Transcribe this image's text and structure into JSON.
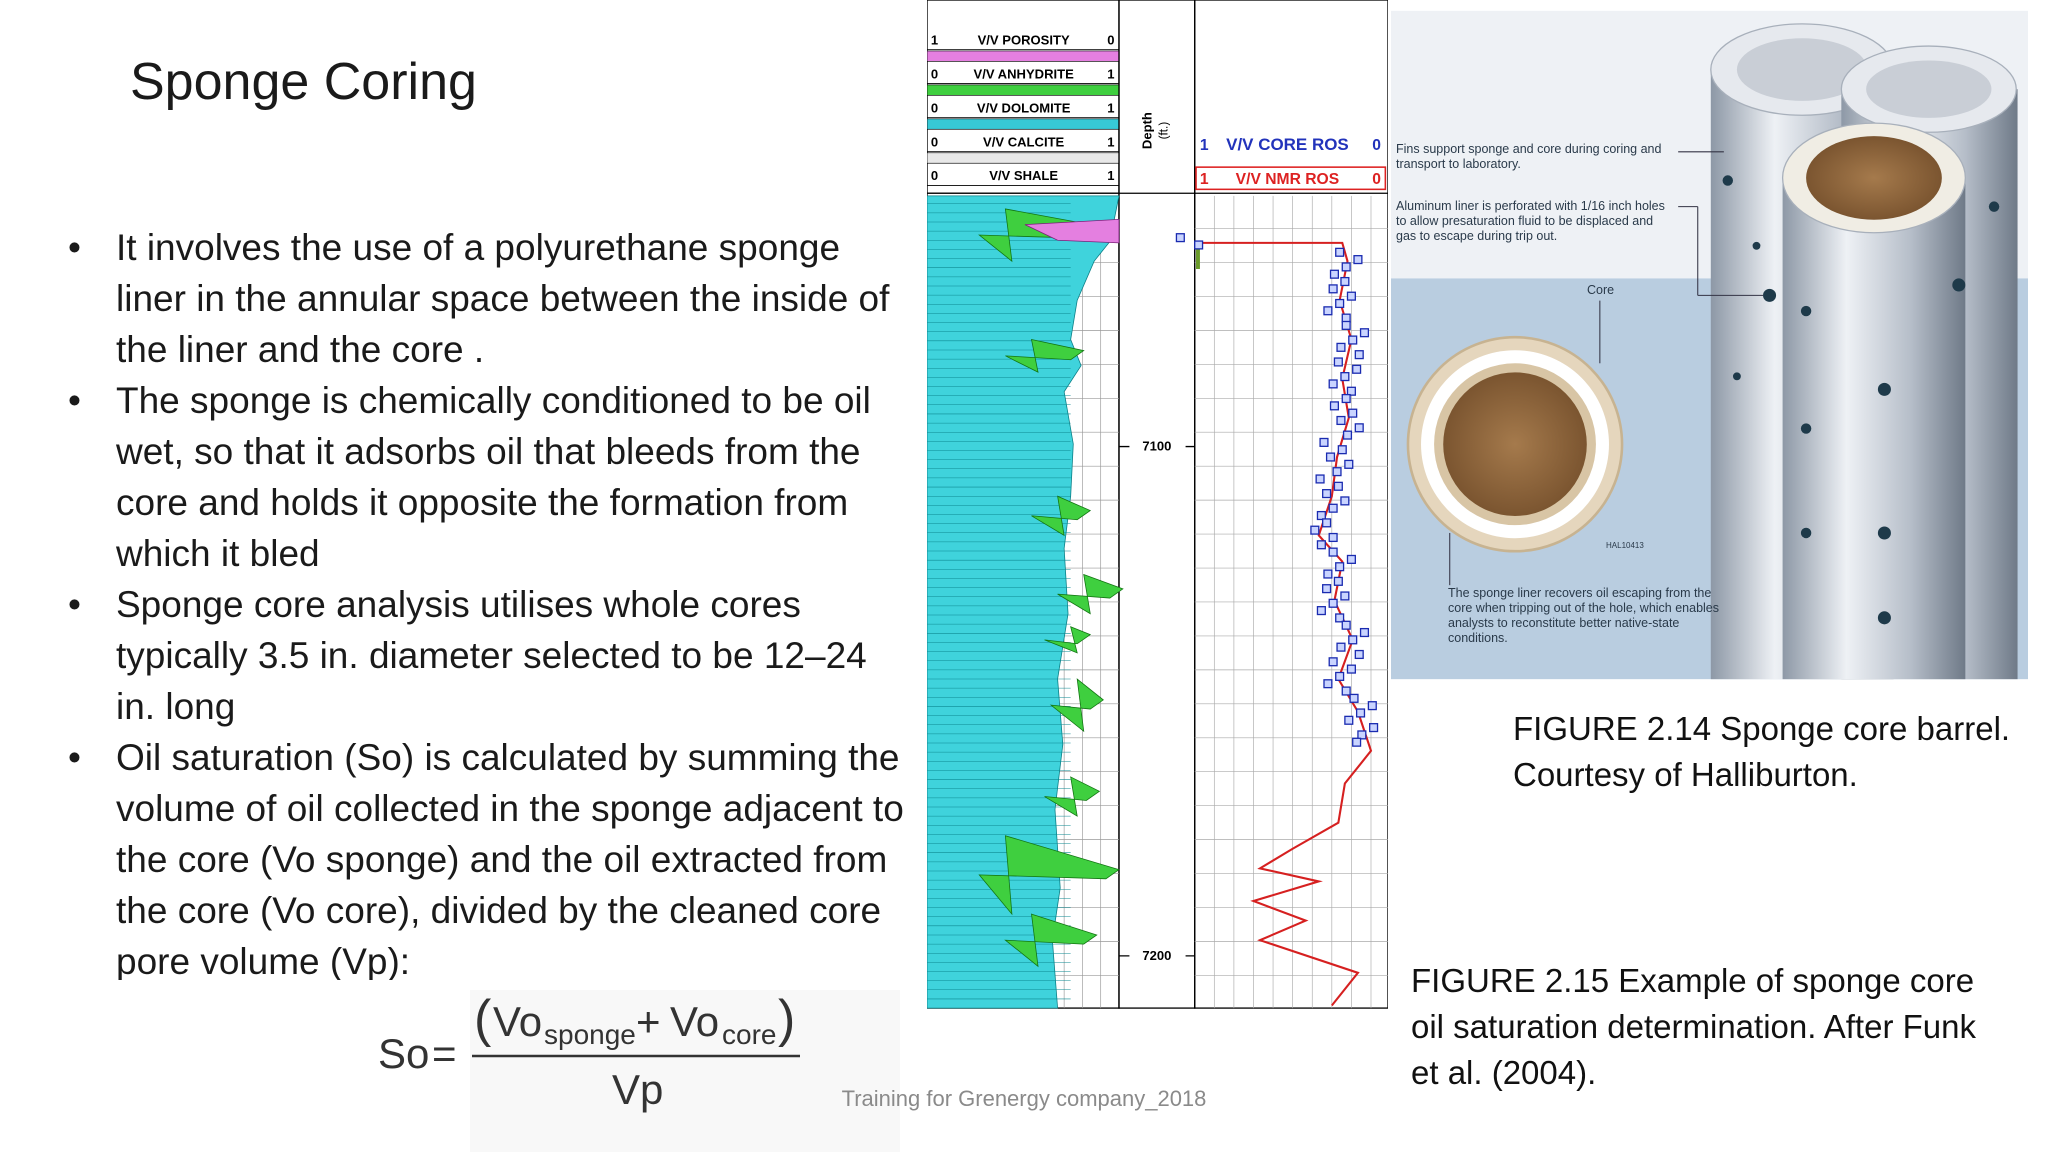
{
  "title": "Sponge Coring",
  "bullets": [
    "It involves the use of a polyurethane sponge liner in the annular space between the inside of the liner and the core .",
    " The sponge is chemically conditioned to be oil wet, so that it adsorbs oil that bleeds from the core and holds it opposite the formation from which it bled",
    "Sponge core analysis utilises whole cores typically 3.5 in. diameter selected to be 12–24 in. long",
    "Oil saturation (So) is calculated by summing the volume of oil collected in the sponge adjacent to the core (Vo sponge) and the oil extracted from the core (Vo core), divided by the cleaned core pore volume (Vp):"
  ],
  "formula": {
    "lhs": "So",
    "equals": "=",
    "vo_1": "Vo",
    "sponge": "sponge",
    "plus": "+",
    "vo_2": "Vo",
    "core": "core",
    "denominator": "Vp"
  },
  "log": {
    "header_rows": [
      {
        "left": "1",
        "label": "V/V POROSITY",
        "right": "0"
      },
      {
        "left": "0",
        "label": "V/V ANHYDRITE",
        "right": "1"
      },
      {
        "left": "0",
        "label": "V/V DOLOMITE",
        "right": "1"
      },
      {
        "left": "0",
        "label": "V/V CALCITE",
        "right": "1"
      },
      {
        "left": "0",
        "label": "V/V SHALE",
        "right": "1"
      }
    ],
    "depth_label": "Depth",
    "depth_unit": "(ft.)",
    "core_ros": {
      "left": "1",
      "label": "V/V CORE ROS",
      "right": "0"
    },
    "nmr_ros": {
      "left": "1",
      "label": "V/V NMR ROS",
      "right": "0"
    },
    "depths": [
      "7100",
      "7200"
    ]
  },
  "figure_2_14": {
    "annotations": [
      "Fins support sponge and core during coring and transport to laboratory.",
      "Aluminum liner is perforated with 1/16 inch holes to allow presaturation fluid to be displaced and gas to escape during trip out.",
      "Core",
      "The sponge liner recovers oil escaping from the core when tripping out of the hole, which enables analysts to reconstitute better native-state conditions."
    ],
    "code": "HAL10413"
  },
  "captions": {
    "figure_2_14": "FIGURE 2.14 Sponge core barrel. Courtesy of Halliburton.",
    "figure_2_15": "FIGURE 2.15 Example of sponge core oil saturation determination. After Funk et al. (2004)."
  },
  "footer": "Training for Grenergy company_2018"
}
